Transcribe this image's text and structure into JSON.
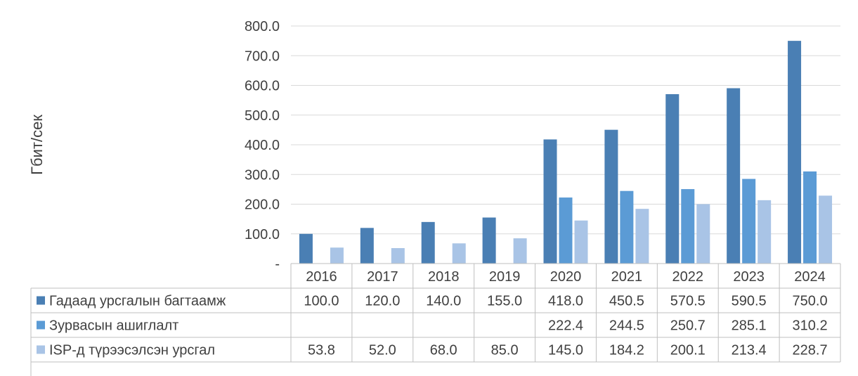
{
  "chart_data": {
    "type": "bar",
    "title": "",
    "xlabel": "",
    "ylabel": "Гбит/сек",
    "ylim": [
      0,
      800
    ],
    "y_ticks": [
      "-",
      "100.0",
      "200.0",
      "300.0",
      "400.0",
      "500.0",
      "600.0",
      "700.0",
      "800.0"
    ],
    "categories": [
      "2016",
      "2017",
      "2018",
      "2019",
      "2020",
      "2021",
      "2022",
      "2023",
      "2024"
    ],
    "grid": true,
    "legend": "data-table",
    "series": [
      {
        "name": "Гадаад урсгалын багтаамж",
        "color": "#4a7fb4",
        "values": [
          100.0,
          120.0,
          140.0,
          155.0,
          418.0,
          450.5,
          570.5,
          590.5,
          750.0
        ],
        "labels": [
          "100.0",
          "120.0",
          "140.0",
          "155.0",
          "418.0",
          "450.5",
          "570.5",
          "590.5",
          "750.0"
        ]
      },
      {
        "name": "Зурвасын ашиглалт",
        "color": "#5b9bd5",
        "values": [
          null,
          null,
          null,
          null,
          222.4,
          244.5,
          250.7,
          285.1,
          310.2
        ],
        "labels": [
          "",
          "",
          "",
          "",
          "222.4",
          "244.5",
          "250.7",
          "285.1",
          "310.2"
        ]
      },
      {
        "name": "ISP-д түрээсэлсэн урсгал",
        "color": "#a9c4e6",
        "values": [
          53.8,
          52.0,
          68.0,
          85.0,
          145.0,
          184.2,
          200.1,
          213.4,
          228.7
        ],
        "labels": [
          "53.8",
          "52.0",
          "68.0",
          "85.0",
          "145.0",
          "184.2",
          "200.1",
          "213.4",
          "228.7"
        ]
      }
    ]
  }
}
